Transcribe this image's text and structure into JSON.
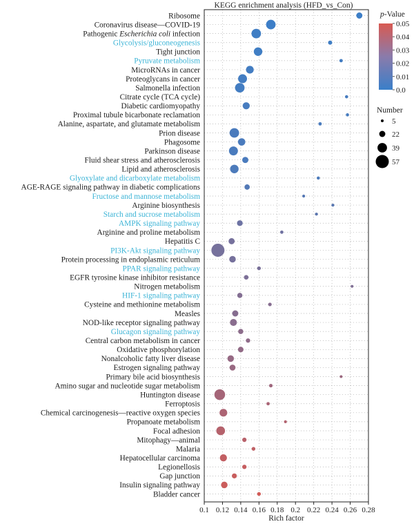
{
  "chart_data": {
    "type": "scatter",
    "title": "KEGG enrichment analysis (HFD_vs_Con)",
    "xlabel": "Rich factor",
    "ylabel": "",
    "xlim": [
      0.1,
      0.28
    ],
    "xticks": [
      "0.1",
      "0.12",
      "0.14",
      "0.16",
      "0.18",
      "0.2",
      "0.22",
      "0.24",
      "0.26",
      "0.28"
    ],
    "grid": "dotted",
    "colorbar": {
      "title_italic": "p",
      "title_rest": "-Value",
      "ticks": [
        "0.05",
        "0.04",
        "0.03",
        "0.02",
        "0.01",
        "0.0"
      ],
      "low_color": "#3a7fc9",
      "high_color": "#d85a52",
      "range": [
        0,
        0.05
      ]
    },
    "size_legend": {
      "title": "Number",
      "entries": [
        {
          "label": "5",
          "value": 5
        },
        {
          "label": "22",
          "value": 22
        },
        {
          "label": "39",
          "value": 39
        },
        {
          "label": "57",
          "value": 57
        }
      ]
    },
    "highlight_color": "#3ab3d6",
    "points": [
      {
        "label": "Ribosome",
        "x": 0.27,
        "p": 0.001,
        "n": 22,
        "hl": false
      },
      {
        "label": "Coronavirus disease—COVID-19",
        "x": 0.173,
        "p": 0.001,
        "n": 39,
        "hl": false
      },
      {
        "label": "Pathogenic Escherichia coli infection",
        "x": 0.157,
        "p": 0.002,
        "n": 39,
        "hl": false,
        "italic": "Escherichia coli"
      },
      {
        "label": "Glycolysis/gluconeogenesis",
        "x": 0.238,
        "p": 0.002,
        "n": 12,
        "hl": true
      },
      {
        "label": "Tight junction",
        "x": 0.159,
        "p": 0.002,
        "n": 34,
        "hl": false
      },
      {
        "label": "Pyruvate metabolism",
        "x": 0.25,
        "p": 0.003,
        "n": 8,
        "hl": true
      },
      {
        "label": "MicroRNAs in cancer",
        "x": 0.15,
        "p": 0.003,
        "n": 30,
        "hl": false
      },
      {
        "label": "Proteoglycans in cancer",
        "x": 0.142,
        "p": 0.003,
        "n": 36,
        "hl": false
      },
      {
        "label": "Salmonella infection",
        "x": 0.139,
        "p": 0.003,
        "n": 39,
        "hl": false
      },
      {
        "label": "Citrate cycle (TCA cycle)",
        "x": 0.256,
        "p": 0.004,
        "n": 7,
        "hl": false
      },
      {
        "label": "Diabetic cardiomyopathy",
        "x": 0.146,
        "p": 0.004,
        "n": 27,
        "hl": false
      },
      {
        "label": "Proximal tubule bicarbonate reclamation",
        "x": 0.257,
        "p": 0.004,
        "n": 7,
        "hl": false
      },
      {
        "label": "Alanine, aspartate, and glutamate metabolism",
        "x": 0.227,
        "p": 0.005,
        "n": 8,
        "hl": false
      },
      {
        "label": "Prion disease",
        "x": 0.133,
        "p": 0.005,
        "n": 39,
        "hl": false
      },
      {
        "label": "Phagosome",
        "x": 0.141,
        "p": 0.005,
        "n": 28,
        "hl": false
      },
      {
        "label": "Parkinson disease",
        "x": 0.132,
        "p": 0.005,
        "n": 36,
        "hl": false
      },
      {
        "label": "Fluid shear stress and atherosclerosis",
        "x": 0.145,
        "p": 0.005,
        "n": 22,
        "hl": false
      },
      {
        "label": "Lipid and atherosclerosis",
        "x": 0.133,
        "p": 0.006,
        "n": 34,
        "hl": false
      },
      {
        "label": "Glyoxylate and dicarboxylate metabolism",
        "x": 0.225,
        "p": 0.006,
        "n": 7,
        "hl": true
      },
      {
        "label": "AGE-RAGE signaling pathway in diabetic complications",
        "x": 0.147,
        "p": 0.008,
        "n": 18,
        "hl": false
      },
      {
        "label": "Fructose and mannose metabolism",
        "x": 0.209,
        "p": 0.009,
        "n": 6,
        "hl": true
      },
      {
        "label": "Arginine biosynthesis",
        "x": 0.241,
        "p": 0.01,
        "n": 6,
        "hl": false
      },
      {
        "label": "Starch and sucrose metabolism",
        "x": 0.223,
        "p": 0.011,
        "n": 6,
        "hl": true
      },
      {
        "label": "AMPK signaling pathway",
        "x": 0.139,
        "p": 0.016,
        "n": 20,
        "hl": true
      },
      {
        "label": "Arginine and proline metabolism",
        "x": 0.185,
        "p": 0.017,
        "n": 8,
        "hl": false
      },
      {
        "label": "Hepatitis C",
        "x": 0.13,
        "p": 0.019,
        "n": 22,
        "hl": false
      },
      {
        "label": "PI3K-Akt signaling pathway",
        "x": 0.115,
        "p": 0.019,
        "n": 57,
        "hl": true
      },
      {
        "label": "Protein processing in endoplasmic reticulum",
        "x": 0.131,
        "p": 0.019,
        "n": 24,
        "hl": false
      },
      {
        "label": "PPAR signaling pathway",
        "x": 0.16,
        "p": 0.02,
        "n": 10,
        "hl": true
      },
      {
        "label": "EGFR tyrosine kinase inhibitor resistance",
        "x": 0.146,
        "p": 0.021,
        "n": 14,
        "hl": false
      },
      {
        "label": "Nitrogen metabolism",
        "x": 0.262,
        "p": 0.022,
        "n": 5,
        "hl": false
      },
      {
        "label": "HIF-1 signaling pathway",
        "x": 0.139,
        "p": 0.023,
        "n": 17,
        "hl": true
      },
      {
        "label": "Cysteine and methionine metabolism",
        "x": 0.172,
        "p": 0.024,
        "n": 9,
        "hl": false
      },
      {
        "label": "Measles",
        "x": 0.134,
        "p": 0.024,
        "n": 22,
        "hl": false
      },
      {
        "label": "NOD-like receptor signaling pathway",
        "x": 0.132,
        "p": 0.025,
        "n": 26,
        "hl": false
      },
      {
        "label": "Glucagon signaling pathway",
        "x": 0.14,
        "p": 0.026,
        "n": 17,
        "hl": true
      },
      {
        "label": "Central carbon metabolism in cancer",
        "x": 0.148,
        "p": 0.027,
        "n": 13,
        "hl": false
      },
      {
        "label": "Oxidative phosphorylation",
        "x": 0.14,
        "p": 0.028,
        "n": 19,
        "hl": false
      },
      {
        "label": "Nonalcoholic fatty liver disease",
        "x": 0.129,
        "p": 0.029,
        "n": 24,
        "hl": false
      },
      {
        "label": "Estrogen signaling pathway",
        "x": 0.131,
        "p": 0.03,
        "n": 21,
        "hl": false
      },
      {
        "label": "Primary bile acid biosynthesis",
        "x": 0.25,
        "p": 0.031,
        "n": 5,
        "hl": false
      },
      {
        "label": "Amino sugar and nucleotide sugar metabolism",
        "x": 0.173,
        "p": 0.032,
        "n": 9,
        "hl": false
      },
      {
        "label": "Huntington disease",
        "x": 0.117,
        "p": 0.034,
        "n": 45,
        "hl": false
      },
      {
        "label": "Ferroptosis",
        "x": 0.17,
        "p": 0.035,
        "n": 8,
        "hl": false
      },
      {
        "label": "Chemical carcinogenesis—reactive oxygen species",
        "x": 0.121,
        "p": 0.036,
        "n": 30,
        "hl": false
      },
      {
        "label": "Propanoate metabolism",
        "x": 0.189,
        "p": 0.038,
        "n": 6,
        "hl": false
      },
      {
        "label": "Focal adhesion",
        "x": 0.118,
        "p": 0.039,
        "n": 35,
        "hl": false
      },
      {
        "label": "Mitophagy—animal",
        "x": 0.144,
        "p": 0.04,
        "n": 13,
        "hl": false
      },
      {
        "label": "Malaria",
        "x": 0.154,
        "p": 0.042,
        "n": 10,
        "hl": false
      },
      {
        "label": "Hepatocellular carcinoma",
        "x": 0.121,
        "p": 0.043,
        "n": 27,
        "hl": false
      },
      {
        "label": "Legionellosis",
        "x": 0.144,
        "p": 0.044,
        "n": 13,
        "hl": false
      },
      {
        "label": "Gap junction",
        "x": 0.133,
        "p": 0.045,
        "n": 16,
        "hl": false
      },
      {
        "label": "Insulin signaling pathway",
        "x": 0.122,
        "p": 0.046,
        "n": 24,
        "hl": false
      },
      {
        "label": "Bladder cancer",
        "x": 0.16,
        "p": 0.048,
        "n": 10,
        "hl": false
      }
    ]
  }
}
